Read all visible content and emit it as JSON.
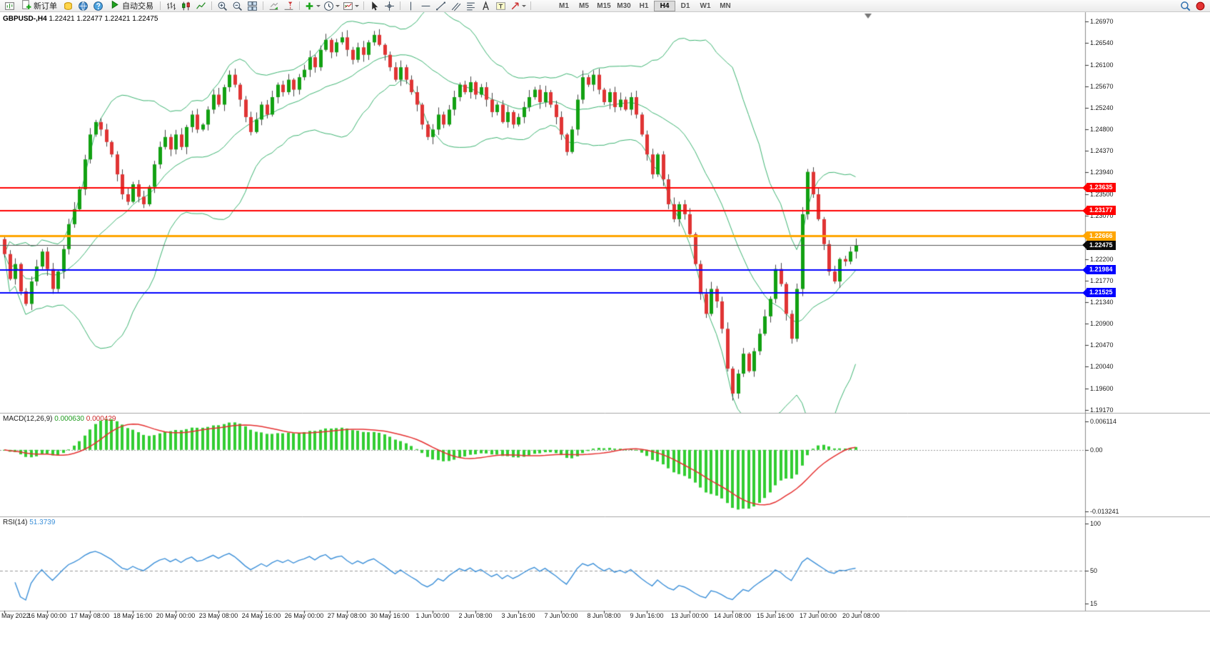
{
  "toolbar": {
    "timeframes": [
      "M1",
      "M5",
      "M15",
      "M30",
      "H1",
      "H4",
      "D1",
      "W1",
      "MN"
    ],
    "active_timeframe": "H4",
    "items": [
      {
        "type": "icon",
        "name": "new-chart"
      },
      {
        "type": "button",
        "name": "new-order",
        "label": "新订单"
      },
      {
        "type": "icon",
        "name": "market"
      },
      {
        "type": "icon",
        "name": "community"
      },
      {
        "type": "icon",
        "name": "help"
      },
      {
        "type": "button",
        "name": "auto-trading",
        "label": "自动交易"
      },
      {
        "type": "sep"
      },
      {
        "type": "icon",
        "name": "chart-bars"
      },
      {
        "type": "icon",
        "name": "chart-candles"
      },
      {
        "type": "icon",
        "name": "chart-line"
      },
      {
        "type": "sep"
      },
      {
        "type": "icon",
        "name": "zoom-in"
      },
      {
        "type": "icon",
        "name": "zoom-out"
      },
      {
        "type": "icon",
        "name": "tile-windows"
      },
      {
        "type": "sep"
      },
      {
        "type": "icon",
        "name": "auto-scroll"
      },
      {
        "type": "icon",
        "name": "chart-shift"
      },
      {
        "type": "sep"
      },
      {
        "type": "icon",
        "name": "indicators",
        "caret": true
      },
      {
        "type": "icon",
        "name": "periods",
        "caret": true
      },
      {
        "type": "icon",
        "name": "templates",
        "caret": true
      },
      {
        "type": "sep"
      },
      {
        "type": "icon",
        "name": "cursor"
      },
      {
        "type": "icon",
        "name": "crosshair"
      },
      {
        "type": "sep"
      },
      {
        "type": "icon",
        "name": "vertical-line"
      },
      {
        "type": "icon",
        "name": "horizontal-line"
      },
      {
        "type": "icon",
        "name": "trendline"
      },
      {
        "type": "icon",
        "name": "channel"
      },
      {
        "type": "icon",
        "name": "fibonacci"
      },
      {
        "type": "icon",
        "name": "text"
      },
      {
        "type": "icon",
        "name": "text-label"
      },
      {
        "type": "icon",
        "name": "arrows",
        "caret": true
      },
      {
        "type": "sep"
      },
      {
        "type": "timeframes"
      },
      {
        "type": "spacer"
      },
      {
        "type": "icon",
        "name": "search"
      },
      {
        "type": "icon",
        "name": "alert"
      }
    ]
  },
  "chart": {
    "symbol_period": "GBPUSD-,H4",
    "ohlc": "1.22421 1.22477 1.22421 1.22475",
    "price_axis": {
      "max": 1.2697,
      "min": 1.1917,
      "labels": [
        "1.26970",
        "1.26540",
        "1.26100",
        "1.25670",
        "1.25240",
        "1.24800",
        "1.24370",
        "1.23940",
        "1.23500",
        "1.23070",
        "1.22630",
        "1.22200",
        "1.21770",
        "1.21340",
        "1.20900",
        "1.20470",
        "1.20040",
        "1.19600",
        "1.19170"
      ]
    },
    "hlines": [
      {
        "price": 1.23635,
        "label": "1.23635",
        "color": "#FF0000",
        "width": 2
      },
      {
        "price": 1.23177,
        "label": "1.23177",
        "color": "#FF0000",
        "width": 2
      },
      {
        "price": 1.22666,
        "label": "1.22666",
        "color": "#FFA500",
        "width": 3
      },
      {
        "price": 1.21984,
        "label": "1.21984",
        "color": "#0000FF",
        "width": 2
      },
      {
        "price": 1.21525,
        "label": "1.21525",
        "color": "#0000FF",
        "width": 2
      }
    ],
    "bid": {
      "price": 1.22475,
      "label": "1.22475",
      "color": "#0A0A0A"
    },
    "time_axis": {
      "labels": [
        "May 2022",
        "16 May 00:00",
        "17 May 08:00",
        "18 May 16:00",
        "20 May 00:00",
        "23 May 08:00",
        "24 May 16:00",
        "26 May 00:00",
        "27 May 08:00",
        "30 May 16:00",
        "1 Jun 00:00",
        "2 Jun 08:00",
        "3 Jun 16:00",
        "7 Jun 00:00",
        "8 Jun 08:00",
        "9 Jun 16:00",
        "13 Jun 00:00",
        "14 Jun 08:00",
        "15 Jun 16:00",
        "17 Jun 00:00",
        "20 Jun 08:00"
      ]
    }
  },
  "chart_data": {
    "type": "candlestick",
    "symbol": "GBPUSD",
    "timeframe": "H4",
    "bollinger": {
      "period": 20,
      "deviation": 2,
      "color": "#3CB371"
    },
    "style": {
      "up": "#12A112",
      "down": "#E03434",
      "wick": "#444444"
    },
    "candles": {
      "first_open": 1.226,
      "closes": [
        1.223,
        1.218,
        1.221,
        1.2155,
        1.213,
        1.2175,
        1.2205,
        1.2235,
        1.22,
        1.216,
        1.2195,
        1.224,
        1.229,
        1.232,
        1.236,
        1.242,
        1.247,
        1.2495,
        1.248,
        1.2455,
        1.243,
        1.239,
        1.235,
        1.2335,
        1.237,
        1.2345,
        1.233,
        1.2365,
        1.241,
        1.2445,
        1.2465,
        1.244,
        1.247,
        1.2445,
        1.2485,
        1.251,
        1.248,
        1.249,
        1.252,
        1.255,
        1.253,
        1.2565,
        1.259,
        1.257,
        1.254,
        1.2505,
        1.2475,
        1.25,
        1.253,
        1.251,
        1.2545,
        1.257,
        1.2555,
        1.258,
        1.256,
        1.2585,
        1.26,
        1.2625,
        1.2605,
        1.264,
        1.266,
        1.2635,
        1.2655,
        1.2665,
        1.264,
        1.262,
        1.2645,
        1.263,
        1.2655,
        1.267,
        1.265,
        1.263,
        1.2605,
        1.258,
        1.2605,
        1.258,
        1.2555,
        1.253,
        1.249,
        1.2465,
        1.248,
        1.251,
        1.249,
        1.252,
        1.2545,
        1.257,
        1.2555,
        1.2575,
        1.255,
        1.2565,
        1.254,
        1.2515,
        1.253,
        1.2495,
        1.2515,
        1.249,
        1.2505,
        1.2525,
        1.2545,
        1.256,
        1.2535,
        1.2555,
        1.253,
        1.2505,
        1.247,
        1.2435,
        1.248,
        1.254,
        1.2585,
        1.257,
        1.259,
        1.256,
        1.2535,
        1.2555,
        1.2525,
        1.254,
        1.252,
        1.2545,
        1.251,
        1.247,
        1.243,
        1.239,
        1.243,
        1.238,
        1.233,
        1.23,
        1.233,
        1.231,
        1.227,
        1.221,
        1.215,
        1.211,
        1.216,
        1.2135,
        1.208,
        1.2,
        1.195,
        1.199,
        1.203,
        1.1995,
        1.2035,
        1.207,
        1.2105,
        1.214,
        1.22,
        1.217,
        1.211,
        1.206,
        1.216,
        1.231,
        1.2395,
        1.235,
        1.23,
        1.225,
        1.2195,
        1.2175,
        1.222,
        1.2215,
        1.2235,
        1.22475
      ]
    }
  },
  "macd": {
    "label": "MACD(12,26,9)",
    "value_main": "0.000630",
    "value_signal": "0.000429",
    "axis": [
      "0.006114",
      "0.00",
      "-0.013241"
    ],
    "max": 0.006114,
    "min": -0.013241,
    "hist_color": "#32CD32",
    "signal_color": "#E53030"
  },
  "rsi": {
    "label": "RSI(14)",
    "value": "51.3739",
    "axis": [
      "100",
      "50",
      "15"
    ],
    "level": 50,
    "color": "#3B8FD8"
  }
}
